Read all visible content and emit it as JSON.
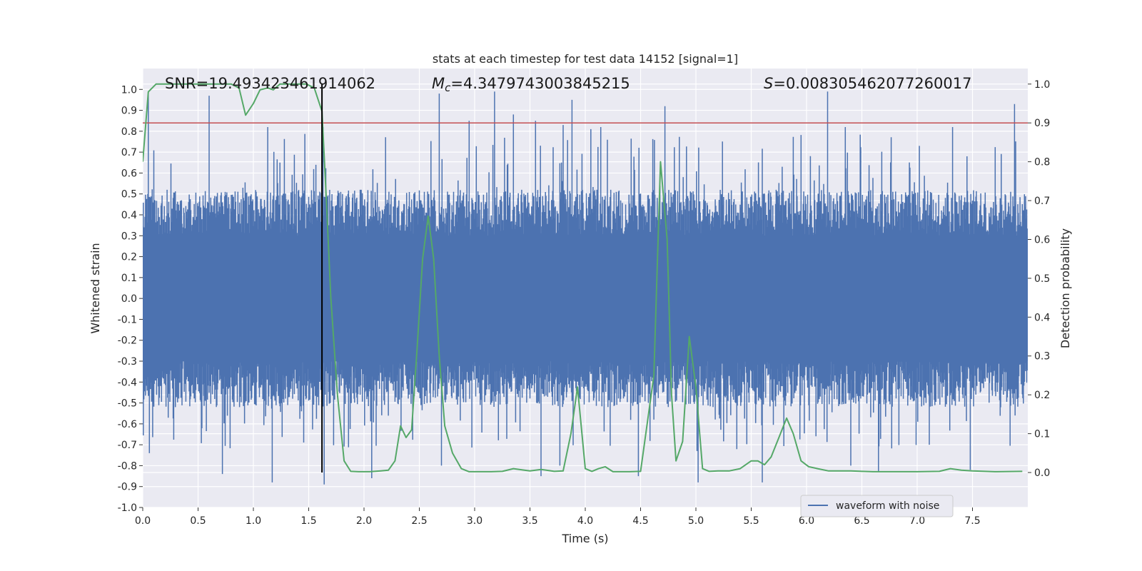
{
  "chart_data": {
    "type": "line",
    "title": "stats at each timestep for test data 14152 [signal=1]",
    "xlabel": "Time (s)",
    "ylabel_left": "Whitened strain",
    "ylabel_right": "Detection probability",
    "xlim": [
      0,
      8.0
    ],
    "ylim_left": [
      -1.0,
      1.1
    ],
    "ylim_right": [
      -0.09,
      1.04
    ],
    "x_ticks": [
      "0.0",
      "0.5",
      "1.0",
      "1.5",
      "2.0",
      "2.5",
      "3.0",
      "3.5",
      "4.0",
      "4.5",
      "5.0",
      "5.5",
      "6.0",
      "6.5",
      "7.0",
      "7.5"
    ],
    "y_ticks_left": [
      "-1.0",
      "-0.9",
      "-0.8",
      "-0.7",
      "-0.6",
      "-0.5",
      "-0.4",
      "-0.3",
      "-0.2",
      "-0.1",
      "0.0",
      "0.1",
      "0.2",
      "0.3",
      "0.4",
      "0.5",
      "0.6",
      "0.7",
      "0.8",
      "0.9",
      "1.0"
    ],
    "y_ticks_right": [
      "0.0",
      "0.1",
      "0.2",
      "0.3",
      "0.4",
      "0.5",
      "0.6",
      "0.7",
      "0.8",
      "0.9",
      "1.0"
    ],
    "grid": true,
    "legend_position": "bottom-right",
    "annotations": {
      "snr": "SNR=19.493423461914062",
      "mc_symbol": "M",
      "mc_sub": "c",
      "mc_value": "=4.3479743003845215",
      "s_symbol": "S",
      "s_value": "=0.008305462077260017"
    },
    "series": [
      {
        "name": "waveform with noise",
        "axis": "left",
        "color": "#4c72b0",
        "description_kind": "dense noisy whitened strain, core band about ±0.4, peaks to about ±1.0",
        "core_amplitude": 0.4,
        "peak_amplitude": 1.0,
        "sample_count": 1600,
        "peaks_positive": [
          [
            0.05,
            0.98
          ],
          [
            0.6,
            0.97
          ],
          [
            1.13,
            0.82
          ],
          [
            1.63,
            0.82
          ],
          [
            2.68,
            0.98
          ],
          [
            2.95,
            0.85
          ],
          [
            3.18,
            0.99
          ],
          [
            3.35,
            0.88
          ],
          [
            3.55,
            0.85
          ],
          [
            3.8,
            0.83
          ],
          [
            3.88,
            0.95
          ],
          [
            4.05,
            0.81
          ],
          [
            4.14,
            0.82
          ],
          [
            4.72,
            0.92
          ],
          [
            6.19,
            0.99
          ],
          [
            6.35,
            0.82
          ],
          [
            7.32,
            0.82
          ],
          [
            7.88,
            0.93
          ]
        ],
        "peaks_negative": [
          [
            0.06,
            -0.74
          ],
          [
            0.72,
            -0.84
          ],
          [
            1.17,
            -0.88
          ],
          [
            1.64,
            -0.89
          ],
          [
            2.07,
            -0.86
          ],
          [
            2.7,
            -0.8
          ],
          [
            3.6,
            -0.85
          ],
          [
            3.77,
            -0.8
          ],
          [
            4.48,
            -0.85
          ],
          [
            5.02,
            -0.88
          ],
          [
            5.6,
            -0.88
          ],
          [
            6.4,
            -0.8
          ],
          [
            6.65,
            -0.83
          ],
          [
            7.48,
            -0.82
          ]
        ]
      },
      {
        "name": "",
        "axis": "right",
        "color": "#55a868",
        "x": [
          0.0,
          0.05,
          0.12,
          0.2,
          0.3,
          0.4,
          0.5,
          0.6,
          0.7,
          0.8,
          0.87,
          0.93,
          1.0,
          1.06,
          1.13,
          1.18,
          1.24,
          1.3,
          1.36,
          1.42,
          1.48,
          1.55,
          1.62,
          1.66,
          1.7,
          1.76,
          1.82,
          1.88,
          1.95,
          2.05,
          2.15,
          2.22,
          2.28,
          2.33,
          2.38,
          2.43,
          2.48,
          2.53,
          2.58,
          2.63,
          2.68,
          2.73,
          2.8,
          2.88,
          2.95,
          3.05,
          3.15,
          3.25,
          3.35,
          3.45,
          3.5,
          3.6,
          3.72,
          3.8,
          3.87,
          3.93,
          4.0,
          4.06,
          4.12,
          4.18,
          4.25,
          4.32,
          4.4,
          4.5,
          4.62,
          4.68,
          4.74,
          4.78,
          4.82,
          4.88,
          4.94,
          5.0,
          5.06,
          5.12,
          5.2,
          5.3,
          5.4,
          5.5,
          5.56,
          5.62,
          5.68,
          5.75,
          5.82,
          5.88,
          5.95,
          6.02,
          6.1,
          6.2,
          6.3,
          6.4,
          6.5,
          6.6,
          6.8,
          7.0,
          7.2,
          7.3,
          7.4,
          7.5,
          7.7,
          7.95
        ],
        "y": [
          0.8,
          0.98,
          1.0,
          1.0,
          1.0,
          1.0,
          1.0,
          1.0,
          1.0,
          1.0,
          0.99,
          0.92,
          0.95,
          0.985,
          0.99,
          0.985,
          1.0,
          1.0,
          1.0,
          1.0,
          1.0,
          0.99,
          0.93,
          0.7,
          0.45,
          0.2,
          0.03,
          0.003,
          0.002,
          0.002,
          0.004,
          0.006,
          0.03,
          0.12,
          0.09,
          0.11,
          0.32,
          0.55,
          0.66,
          0.55,
          0.3,
          0.12,
          0.05,
          0.01,
          0.002,
          0.002,
          0.002,
          0.003,
          0.01,
          0.006,
          0.004,
          0.008,
          0.003,
          0.004,
          0.1,
          0.22,
          0.01,
          0.003,
          0.01,
          0.015,
          0.002,
          0.002,
          0.002,
          0.003,
          0.25,
          0.8,
          0.6,
          0.2,
          0.03,
          0.08,
          0.35,
          0.22,
          0.01,
          0.003,
          0.004,
          0.004,
          0.01,
          0.03,
          0.03,
          0.02,
          0.04,
          0.09,
          0.14,
          0.1,
          0.03,
          0.015,
          0.01,
          0.004,
          0.004,
          0.004,
          0.003,
          0.002,
          0.002,
          0.002,
          0.003,
          0.01,
          0.006,
          0.004,
          0.002,
          0.003
        ]
      }
    ],
    "threshold": {
      "value": 0.9,
      "axis": "right",
      "color": "#c44e52"
    },
    "marker_line": {
      "x": 1.62,
      "color": "#000000"
    }
  }
}
